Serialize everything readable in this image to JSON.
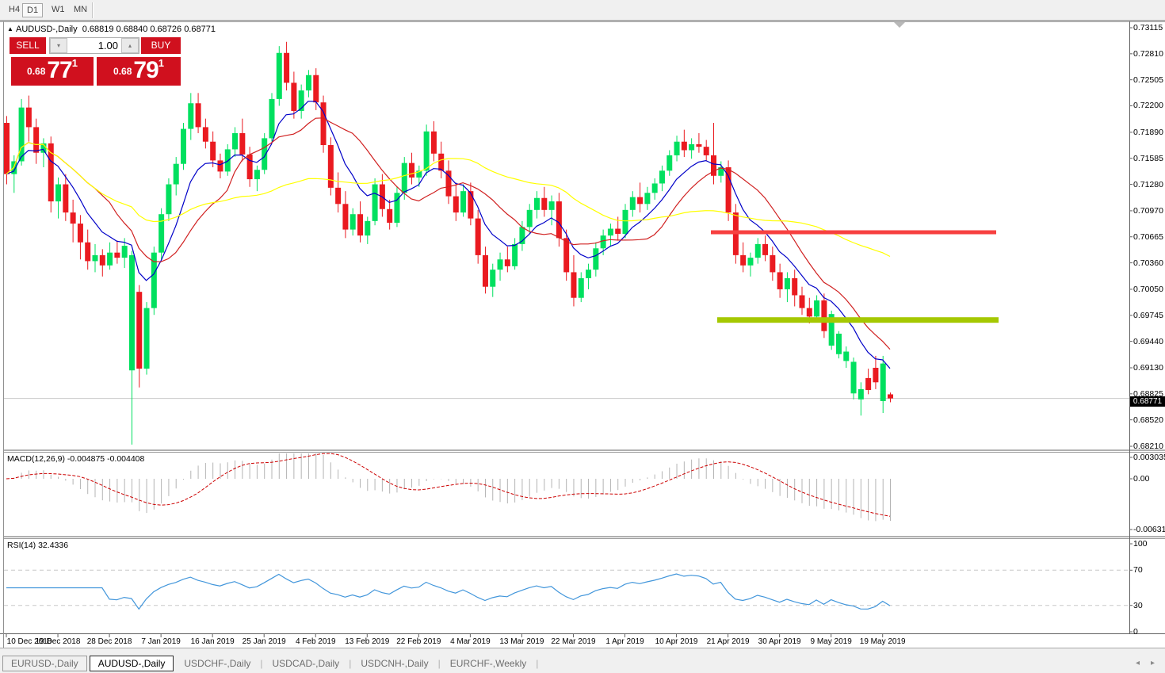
{
  "toolbar": {
    "timeframes": [
      {
        "label": "H4",
        "active": false
      },
      {
        "label": "D1",
        "active": true
      },
      {
        "label": "W1",
        "active": false
      },
      {
        "label": "MN",
        "active": false
      }
    ]
  },
  "chart": {
    "title_symbol": "AUDUSD-,Daily",
    "title_ohlc": "0.68819 0.68840 0.68726 0.68771",
    "marker_icon": "▼",
    "title_icon": "▲",
    "trade_panel": {
      "sell_label": "SELL",
      "buy_label": "BUY",
      "volume": "1.00",
      "spin_down_icon": "▾",
      "spin_up_icon": "▴",
      "sell_small": "0.68",
      "sell_big": "77",
      "sell_sup": "1",
      "buy_small": "0.68",
      "buy_big": "79",
      "buy_sup": "1"
    },
    "price_axis_labels": [
      "0.73115",
      "0.72810",
      "0.72505",
      "0.72200",
      "0.71890",
      "0.71585",
      "0.71280",
      "0.70970",
      "0.70665",
      "0.70360",
      "0.70050",
      "0.69745",
      "0.69440",
      "0.69130",
      "0.68825",
      "0.68520",
      "0.68210"
    ],
    "current_price": "0.68771",
    "colors": {
      "candle_up": "#00e05f",
      "candle_down": "#ea1a20",
      "ma_fast": "#0000c8",
      "ma_mid": "#d02020",
      "ma_slow": "#ffff00",
      "resistance_band": "#f74040",
      "support_band": "#a5c802",
      "price_line": "#c8c8c8",
      "macd_bar": "#b4b4b4",
      "macd_signal": "#cc0000",
      "rsi_line": "#4296db"
    }
  },
  "macd_pane": {
    "label": "MACD(12,26,9) -0.004875 -0.004408",
    "axis_max": "0.003035",
    "axis_zero": "0.00",
    "axis_min": "-0.006311"
  },
  "rsi_pane": {
    "label": "RSI(14) 32.4336",
    "axis_labels": [
      "100",
      "70",
      "30",
      "0"
    ]
  },
  "date_axis": {
    "labels": [
      "10 Dec 2018",
      "19 Dec 2018",
      "28 Dec 2018",
      "7 Jan 2019",
      "16 Jan 2019",
      "25 Jan 2019",
      "4 Feb 2019",
      "13 Feb 2019",
      "22 Feb 2019",
      "4 Mar 2019",
      "13 Mar 2019",
      "22 Mar 2019",
      "1 Apr 2019",
      "10 Apr 2019",
      "21 Apr 2019",
      "30 Apr 2019",
      "9 May 2019",
      "19 May 2019"
    ]
  },
  "tabs": {
    "items": [
      {
        "label": "EURUSD-,Daily",
        "active": false,
        "boxed": true
      },
      {
        "label": "AUDUSD-,Daily",
        "active": true,
        "boxed": true
      },
      {
        "label": "USDCHF-,Daily",
        "active": false,
        "boxed": false
      },
      {
        "label": "USDCAD-,Daily",
        "active": false,
        "boxed": false
      },
      {
        "label": "USDCNH-,Daily",
        "active": false,
        "boxed": false
      },
      {
        "label": "EURCHF-,Weekly",
        "active": false,
        "boxed": false
      }
    ],
    "nav_left_icon": "◂",
    "nav_right_icon": "▸"
  },
  "chart_data": {
    "type": "candlestick",
    "symbol": "AUDUSD-",
    "period": "Daily",
    "y_range": [
      0.6821,
      0.73115
    ],
    "x_tick_step": 7,
    "x_tick_labels": [
      "10 Dec 2018",
      "19 Dec 2018",
      "28 Dec 2018",
      "7 Jan 2019",
      "16 Jan 2019",
      "25 Jan 2019",
      "4 Feb 2019",
      "13 Feb 2019",
      "22 Feb 2019",
      "4 Mar 2019",
      "13 Mar 2019",
      "22 Mar 2019",
      "1 Apr 2019",
      "10 Apr 2019",
      "21 Apr 2019",
      "30 Apr 2019",
      "9 May 2019",
      "19 May 2019"
    ],
    "last_bar_ohlc": [
      0.68819,
      0.6884,
      0.68726,
      0.68771
    ],
    "current_bid": 0.68771,
    "ohlc": [
      [
        0.72,
        0.7208,
        0.7128,
        0.714
      ],
      [
        0.714,
        0.7162,
        0.7118,
        0.7155
      ],
      [
        0.7155,
        0.7228,
        0.715,
        0.7218
      ],
      [
        0.7218,
        0.7232,
        0.7178,
        0.7195
      ],
      [
        0.7195,
        0.7205,
        0.7152,
        0.7165
      ],
      [
        0.7165,
        0.7182,
        0.7148,
        0.7176
      ],
      [
        0.7176,
        0.7184,
        0.7095,
        0.7108
      ],
      [
        0.7108,
        0.7136,
        0.7088,
        0.7128
      ],
      [
        0.7128,
        0.714,
        0.7085,
        0.7095
      ],
      [
        0.7095,
        0.711,
        0.706,
        0.7082
      ],
      [
        0.7082,
        0.7092,
        0.704,
        0.706
      ],
      [
        0.706,
        0.7075,
        0.7028,
        0.7038
      ],
      [
        0.7038,
        0.7058,
        0.7025,
        0.7045
      ],
      [
        0.7045,
        0.7052,
        0.702,
        0.7033
      ],
      [
        0.7033,
        0.706,
        0.7028,
        0.7048
      ],
      [
        0.7048,
        0.7062,
        0.7035,
        0.7042
      ],
      [
        0.7042,
        0.7065,
        0.703,
        0.7056
      ],
      [
        0.691,
        0.705,
        0.6823,
        0.7045
      ],
      [
        0.7002,
        0.701,
        0.689,
        0.6912
      ],
      [
        0.6912,
        0.699,
        0.6905,
        0.6983
      ],
      [
        0.6983,
        0.7055,
        0.6975,
        0.7048
      ],
      [
        0.7048,
        0.71,
        0.704,
        0.7093
      ],
      [
        0.7093,
        0.7135,
        0.7085,
        0.7128
      ],
      [
        0.7128,
        0.716,
        0.7115,
        0.7152
      ],
      [
        0.7152,
        0.72,
        0.7145,
        0.7193
      ],
      [
        0.7193,
        0.7235,
        0.718,
        0.7223
      ],
      [
        0.7223,
        0.7235,
        0.7188,
        0.7195
      ],
      [
        0.7195,
        0.7205,
        0.717,
        0.7178
      ],
      [
        0.7178,
        0.719,
        0.7148,
        0.7156
      ],
      [
        0.7156,
        0.7164,
        0.7135,
        0.7143
      ],
      [
        0.7143,
        0.7175,
        0.7138,
        0.7169
      ],
      [
        0.7169,
        0.7195,
        0.716,
        0.7188
      ],
      [
        0.7188,
        0.7205,
        0.7155,
        0.7163
      ],
      [
        0.7163,
        0.7172,
        0.7125,
        0.7134
      ],
      [
        0.7134,
        0.715,
        0.712,
        0.7145
      ],
      [
        0.7145,
        0.7188,
        0.714,
        0.7182
      ],
      [
        0.7182,
        0.7235,
        0.7178,
        0.7228
      ],
      [
        0.7228,
        0.729,
        0.722,
        0.7282
      ],
      [
        0.7282,
        0.7295,
        0.7238,
        0.7247
      ],
      [
        0.7247,
        0.726,
        0.7205,
        0.7214
      ],
      [
        0.7214,
        0.7245,
        0.7205,
        0.7238
      ],
      [
        0.7238,
        0.7262,
        0.723,
        0.7256
      ],
      [
        0.7256,
        0.7264,
        0.7215,
        0.7224
      ],
      [
        0.7224,
        0.7232,
        0.7165,
        0.7174
      ],
      [
        0.7174,
        0.7183,
        0.7115,
        0.7124
      ],
      [
        0.7124,
        0.7142,
        0.7095,
        0.7105
      ],
      [
        0.7105,
        0.712,
        0.7065,
        0.7075
      ],
      [
        0.7075,
        0.71,
        0.7068,
        0.7093
      ],
      [
        0.7093,
        0.7108,
        0.706,
        0.7068
      ],
      [
        0.7068,
        0.709,
        0.7058,
        0.7085
      ],
      [
        0.7085,
        0.7135,
        0.708,
        0.7128
      ],
      [
        0.7128,
        0.714,
        0.709,
        0.7099
      ],
      [
        0.7099,
        0.711,
        0.7075,
        0.7083
      ],
      [
        0.7083,
        0.7125,
        0.7078,
        0.7118
      ],
      [
        0.7118,
        0.716,
        0.711,
        0.7153
      ],
      [
        0.7153,
        0.7165,
        0.7128,
        0.7136
      ],
      [
        0.7136,
        0.715,
        0.7125,
        0.7144
      ],
      [
        0.7144,
        0.7198,
        0.7138,
        0.719
      ],
      [
        0.719,
        0.7202,
        0.7155,
        0.7164
      ],
      [
        0.7164,
        0.7178,
        0.7135,
        0.7144
      ],
      [
        0.7144,
        0.7156,
        0.7105,
        0.7114
      ],
      [
        0.7114,
        0.713,
        0.7085,
        0.7095
      ],
      [
        0.7095,
        0.7128,
        0.709,
        0.712
      ],
      [
        0.712,
        0.713,
        0.708,
        0.7088
      ],
      [
        0.7088,
        0.7098,
        0.7035,
        0.7045
      ],
      [
        0.7045,
        0.7055,
        0.7,
        0.7008
      ],
      [
        0.7008,
        0.7035,
        0.6996,
        0.7028
      ],
      [
        0.7028,
        0.7048,
        0.7015,
        0.704
      ],
      [
        0.704,
        0.7055,
        0.7025,
        0.7032
      ],
      [
        0.7032,
        0.7065,
        0.7028,
        0.7058
      ],
      [
        0.7058,
        0.7085,
        0.705,
        0.7078
      ],
      [
        0.7078,
        0.7105,
        0.707,
        0.7098
      ],
      [
        0.7098,
        0.712,
        0.7088,
        0.7112
      ],
      [
        0.7112,
        0.7125,
        0.709,
        0.7098
      ],
      [
        0.7098,
        0.7115,
        0.708,
        0.7108
      ],
      [
        0.7108,
        0.7118,
        0.7055,
        0.7065
      ],
      [
        0.7065,
        0.7075,
        0.7015,
        0.7025
      ],
      [
        0.7025,
        0.7045,
        0.6985,
        0.6995
      ],
      [
        0.6995,
        0.7025,
        0.699,
        0.7018
      ],
      [
        0.7018,
        0.7035,
        0.7005,
        0.7028
      ],
      [
        0.7028,
        0.706,
        0.702,
        0.7053
      ],
      [
        0.7053,
        0.7075,
        0.7045,
        0.7068
      ],
      [
        0.7068,
        0.7082,
        0.7055,
        0.7076
      ],
      [
        0.7076,
        0.709,
        0.7062,
        0.707
      ],
      [
        0.707,
        0.7105,
        0.7065,
        0.7098
      ],
      [
        0.7098,
        0.712,
        0.709,
        0.7113
      ],
      [
        0.7113,
        0.713,
        0.7095,
        0.7105
      ],
      [
        0.7105,
        0.7125,
        0.7098,
        0.7118
      ],
      [
        0.7118,
        0.7135,
        0.711,
        0.7129
      ],
      [
        0.7129,
        0.715,
        0.712,
        0.7144
      ],
      [
        0.7144,
        0.7168,
        0.7138,
        0.7162
      ],
      [
        0.7162,
        0.7185,
        0.7155,
        0.7178
      ],
      [
        0.7178,
        0.7192,
        0.716,
        0.7168
      ],
      [
        0.7168,
        0.7182,
        0.7158,
        0.7175
      ],
      [
        0.7175,
        0.7188,
        0.7165,
        0.7172
      ],
      [
        0.7172,
        0.718,
        0.7155,
        0.7162
      ],
      [
        0.7162,
        0.72,
        0.7128,
        0.7138
      ],
      [
        0.7138,
        0.7155,
        0.713,
        0.7148
      ],
      [
        0.7148,
        0.7156,
        0.7085,
        0.7095
      ],
      [
        0.7095,
        0.7105,
        0.7035,
        0.7045
      ],
      [
        0.7045,
        0.706,
        0.7025,
        0.7033
      ],
      [
        0.7033,
        0.7048,
        0.702,
        0.7042
      ],
      [
        0.7042,
        0.7065,
        0.7035,
        0.7058
      ],
      [
        0.7058,
        0.7068,
        0.7038,
        0.7045
      ],
      [
        0.7045,
        0.7055,
        0.7015,
        0.7025
      ],
      [
        0.7025,
        0.7035,
        0.6995,
        0.7005
      ],
      [
        0.7005,
        0.7025,
        0.699,
        0.7018
      ],
      [
        0.7018,
        0.7028,
        0.6985,
        0.6998
      ],
      [
        0.6998,
        0.7008,
        0.6975,
        0.6983
      ],
      [
        0.6983,
        0.6995,
        0.6965,
        0.6973
      ],
      [
        0.6973,
        0.6998,
        0.6968,
        0.6992
      ],
      [
        0.6992,
        0.7,
        0.6948,
        0.6956
      ],
      [
        0.6939,
        0.698,
        0.6934,
        0.6976
      ],
      [
        0.6929,
        0.6956,
        0.6924,
        0.6953
      ],
      [
        0.6921,
        0.6938,
        0.6913,
        0.6932
      ],
      [
        0.6883,
        0.6925,
        0.6876,
        0.692
      ],
      [
        0.6876,
        0.6896,
        0.6857,
        0.6888
      ],
      [
        0.6901,
        0.6912,
        0.6882,
        0.6887
      ],
      [
        0.6913,
        0.6927,
        0.6888,
        0.6896
      ],
      [
        0.6874,
        0.6927,
        0.686,
        0.6918
      ],
      [
        0.68819,
        0.6884,
        0.68726,
        0.68771
      ]
    ],
    "moving_averages": [
      {
        "name": "fast",
        "type": "ema",
        "period": 8,
        "color": "#0000c8"
      },
      {
        "name": "mid",
        "type": "sma",
        "period": 13,
        "color": "#d02020"
      },
      {
        "name": "slow",
        "type": "sma",
        "period": 40,
        "color": "#ffff00"
      }
    ],
    "horizontal_bands": [
      {
        "name": "resistance",
        "price": 0.70718,
        "color": "#f74040",
        "x_from": 897,
        "x_to": 1257,
        "thickness": 5
      },
      {
        "name": "support",
        "price": 0.6969,
        "color": "#a5c802",
        "x_from": 905,
        "x_to": 1260,
        "thickness": 7
      }
    ],
    "indicators": {
      "macd": {
        "fast": 12,
        "slow": 26,
        "signal_period": 9,
        "value": -0.004875,
        "signal_value": -0.004408,
        "axis_range": [
          -0.006311,
          0.003035
        ]
      },
      "rsi": {
        "period": 14,
        "value": 32.4336,
        "levels": [
          30,
          70
        ],
        "axis_range": [
          0,
          100
        ]
      }
    }
  }
}
